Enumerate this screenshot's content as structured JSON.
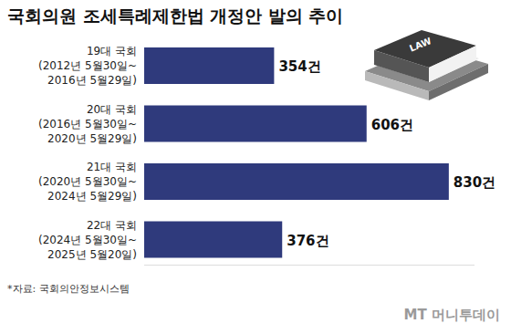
{
  "chart_data": {
    "type": "bar",
    "orientation": "horizontal",
    "title": "국회의원 조세특례제한법 개정안 발의 추이",
    "categories": [
      "19대 국회\n(2012년 5월30일~\n2016년 5월29일)",
      "20대 국회\n(2016년 5월30일~\n2020년 5월29일)",
      "21대 국회\n(2020년 5월30일~\n2024년 5월29일)",
      "22대 국회\n(2024년 5월30일~\n2025년 5월20일)"
    ],
    "values": [
      354,
      606,
      830,
      376
    ],
    "value_labels": [
      "354건",
      "606건",
      "830건",
      "376건"
    ],
    "color": "#2f3a7c",
    "xlim": [
      0,
      900
    ],
    "xticks": [],
    "grid": false,
    "tick_labels": false,
    "annotations": [
      "LAW"
    ]
  },
  "source": "*자료: 국회의안정보시스템",
  "credit": "MT 머니투데이"
}
